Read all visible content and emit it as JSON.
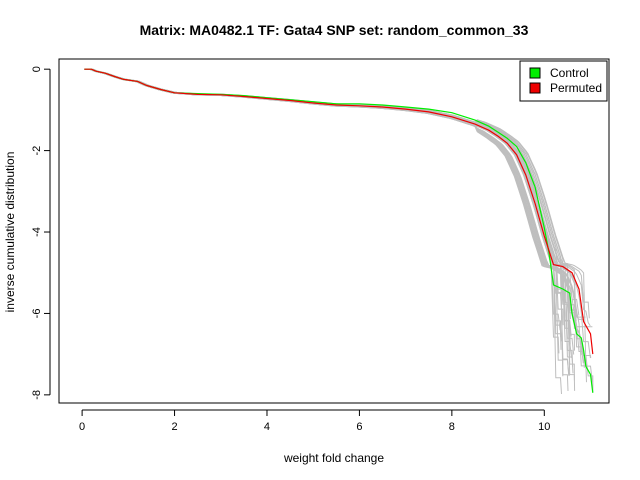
{
  "chart_data": {
    "type": "line",
    "title": "Matrix: MA0482.1 TF: Gata4 SNP set: random_common_33",
    "xlabel": "weight fold change",
    "ylabel": "inverse cumulative distribution",
    "xlim": [
      -0.5,
      11.4
    ],
    "ylim": [
      -8.2,
      0.25
    ],
    "x_ticks": [
      0,
      2,
      4,
      6,
      8,
      10
    ],
    "y_ticks": [
      0,
      -2,
      -4,
      -6,
      -8
    ],
    "x_tick_labels": [
      "0",
      "2",
      "4",
      "6",
      "8",
      "10"
    ],
    "y_tick_labels": [
      "0",
      "-2",
      "-4",
      "-6",
      "-8"
    ],
    "grid": false,
    "legend": {
      "position": "top-right",
      "entries": [
        {
          "label": "Control",
          "color": "#00ee00"
        },
        {
          "label": "Permuted",
          "color": "#ee0000"
        }
      ]
    },
    "background_series": {
      "color": "#bebebe",
      "count": 45,
      "description": "permuted replicate curves spread around the Permuted series"
    },
    "series": [
      {
        "name": "Control",
        "color": "#00ee00",
        "x": [
          0.05,
          0.2,
          0.3,
          0.5,
          0.7,
          0.9,
          1.2,
          1.4,
          1.7,
          2.0,
          2.5,
          3.0,
          3.5,
          4.0,
          4.5,
          5.0,
          5.5,
          6.0,
          6.5,
          7.0,
          7.5,
          8.0,
          8.5,
          8.8,
          9.0,
          9.2,
          9.4,
          9.6,
          9.8,
          9.9,
          10.0,
          10.1,
          10.2,
          10.4,
          10.55,
          10.6,
          10.7,
          10.8,
          10.85,
          10.9,
          11.0,
          11.05
        ],
        "y": [
          0.0,
          0.0,
          -0.05,
          -0.1,
          -0.18,
          -0.25,
          -0.3,
          -0.4,
          -0.5,
          -0.58,
          -0.6,
          -0.62,
          -0.65,
          -0.7,
          -0.75,
          -0.8,
          -0.85,
          -0.85,
          -0.88,
          -0.93,
          -0.98,
          -1.07,
          -1.25,
          -1.4,
          -1.55,
          -1.7,
          -1.9,
          -2.3,
          -2.9,
          -3.4,
          -3.9,
          -4.5,
          -5.3,
          -5.4,
          -5.5,
          -6.0,
          -6.5,
          -6.6,
          -6.9,
          -7.3,
          -7.5,
          -7.95
        ]
      },
      {
        "name": "Permuted",
        "color": "#ee0000",
        "x": [
          0.05,
          0.2,
          0.3,
          0.5,
          0.7,
          0.9,
          1.2,
          1.4,
          1.7,
          2.0,
          2.5,
          3.0,
          3.5,
          4.0,
          4.5,
          5.0,
          5.5,
          6.0,
          6.5,
          7.0,
          7.5,
          8.0,
          8.5,
          8.8,
          9.0,
          9.2,
          9.4,
          9.6,
          9.8,
          10.0,
          10.2,
          10.4,
          10.6,
          10.75,
          10.85,
          10.9,
          11.0,
          11.05
        ],
        "y": [
          0.0,
          0.0,
          -0.05,
          -0.1,
          -0.18,
          -0.25,
          -0.3,
          -0.4,
          -0.5,
          -0.58,
          -0.62,
          -0.63,
          -0.67,
          -0.72,
          -0.77,
          -0.83,
          -0.88,
          -0.9,
          -0.93,
          -0.98,
          -1.05,
          -1.17,
          -1.35,
          -1.5,
          -1.65,
          -1.82,
          -2.1,
          -2.6,
          -3.3,
          -4.1,
          -4.8,
          -4.85,
          -5.0,
          -5.4,
          -6.2,
          -6.3,
          -6.5,
          -7.0
        ]
      }
    ]
  }
}
